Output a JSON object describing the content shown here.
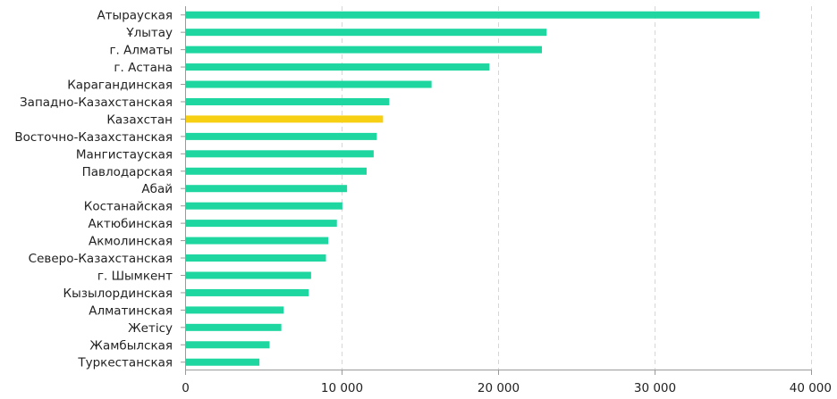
{
  "chart_data": {
    "type": "bar",
    "orientation": "horizontal",
    "title": "",
    "xlabel": "",
    "ylabel": "",
    "xlim": [
      0,
      40000
    ],
    "xticks": [
      0,
      10000,
      20000,
      30000,
      40000
    ],
    "xtick_labels": [
      "0",
      "10 000",
      "20 000",
      "30 000",
      "40 000"
    ],
    "grid": "vertical dashed",
    "legend": "none",
    "colors": {
      "default": "#1dd6a0",
      "highlight": "#f7d014"
    },
    "categories": [
      "Атырауская",
      "Ұлытау",
      "г. Алматы",
      "г. Астана",
      "Карагандинская",
      "Западно-Казахстанская",
      "Казахстан",
      "Восточно-Казахстанская",
      "Мангистауская",
      "Павлодарская",
      "Абай",
      "Костанайская",
      "Актюбинская",
      "Акмолинская",
      "Северо-Казахстанская",
      "г. Шымкент",
      "Кызылординская",
      "Алматинская",
      "Жетісу",
      "Жамбылская",
      "Туркестанская"
    ],
    "values": [
      36700,
      23100,
      22800,
      19450,
      15750,
      13050,
      12650,
      12250,
      12050,
      11600,
      10350,
      10050,
      9700,
      9150,
      9000,
      8050,
      7900,
      6300,
      6150,
      5400,
      4750
    ],
    "highlight_category": "Казахстан"
  }
}
